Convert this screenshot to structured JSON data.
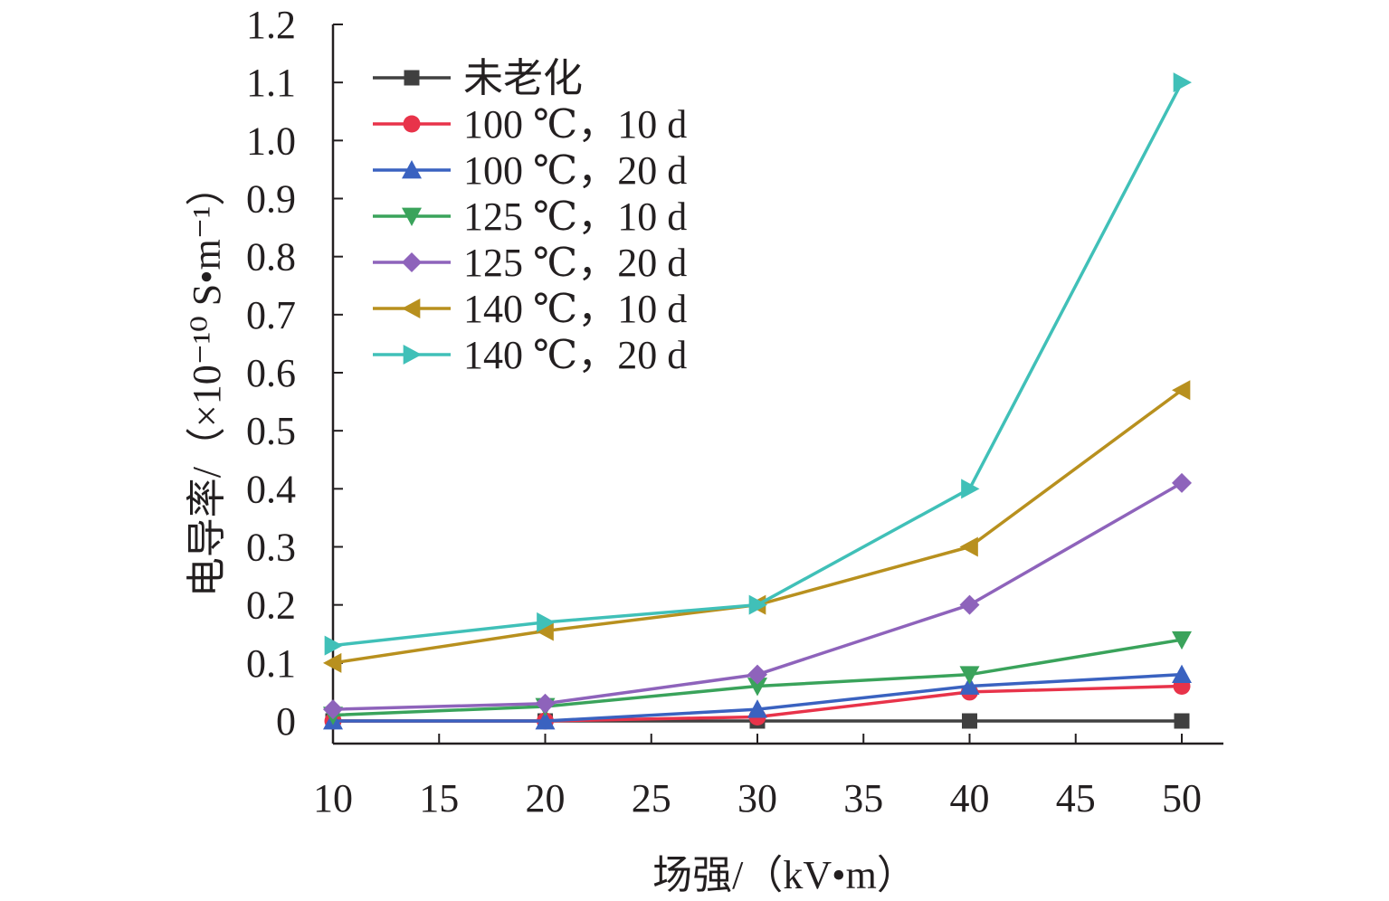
{
  "chart_data": {
    "type": "line",
    "xlabel": "场强/（kV•m）",
    "ylabel": "电导率/（×10⁻¹⁰ S•m⁻¹）",
    "xlim": [
      10,
      50
    ],
    "ylim": [
      0,
      1.2
    ],
    "x_ticks": [
      "10",
      "15",
      "20",
      "25",
      "30",
      "35",
      "40",
      "45",
      "50"
    ],
    "y_ticks": [
      "0",
      "0.1",
      "0.2",
      "0.3",
      "0.4",
      "0.5",
      "0.6",
      "0.7",
      "0.8",
      "0.9",
      "1.0",
      "1.1",
      "1.2"
    ],
    "x": [
      10,
      20,
      30,
      40,
      50
    ],
    "grid": false,
    "legend_position": "top-left",
    "series": [
      {
        "name": "未老化",
        "marker": "square",
        "color": "#404040",
        "values": [
          0.0,
          0.0,
          0.0,
          0.0,
          0.0
        ]
      },
      {
        "name": "100 ℃，10 d",
        "marker": "circle",
        "color": "#e8334a",
        "values": [
          0.0,
          0.0,
          0.007,
          0.05,
          0.06
        ]
      },
      {
        "name": "100 ℃，20 d",
        "marker": "triangle-up",
        "color": "#3a62c0",
        "values": [
          0.0,
          0.0,
          0.02,
          0.06,
          0.08
        ]
      },
      {
        "name": "125 ℃，10 d",
        "marker": "triangle-down",
        "color": "#3aa35b",
        "values": [
          0.01,
          0.025,
          0.06,
          0.08,
          0.14
        ]
      },
      {
        "name": "125 ℃，20 d",
        "marker": "diamond",
        "color": "#8e63bb",
        "values": [
          0.02,
          0.03,
          0.08,
          0.2,
          0.41
        ]
      },
      {
        "name": "140 ℃，10 d",
        "marker": "triangle-left",
        "color": "#b8901e",
        "values": [
          0.1,
          0.155,
          0.2,
          0.3,
          0.57
        ]
      },
      {
        "name": "140 ℃，20 d",
        "marker": "triangle-right",
        "color": "#40c0b8",
        "values": [
          0.13,
          0.17,
          0.2,
          0.4,
          1.1
        ]
      }
    ]
  }
}
